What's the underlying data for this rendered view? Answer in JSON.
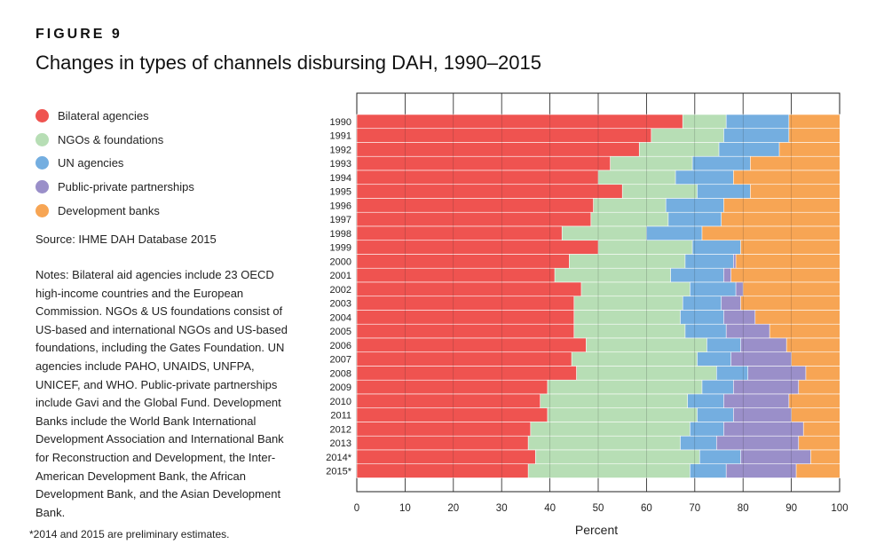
{
  "figure_label": "FIGURE 9",
  "title": "Changes in types of channels disbursing DAH, 1990–2015",
  "source": "Source: IHME DAH Database 2015",
  "notes": "Notes: Bilateral aid agencies include 23 OECD high-income countries and the European Commission. NGOs & US foundations consist of US-based and international NGOs and US-based foundations, including the Gates Foundation. UN agencies include PAHO, UNAIDS, UNFPA, UNICEF, and WHO. Public-private partnerships include Gavi and the Global Fund. Development Banks include the World Bank International Development Association and International Bank for Reconstruction and Development, the Inter-American Development Bank, the African Development Bank, and the Asian Development Bank.",
  "footnote": "*2014 and 2015 are preliminary estimates.",
  "legend": [
    {
      "label": "Bilateral agencies",
      "color": "#ef5350"
    },
    {
      "label": "NGOs & foundations",
      "color": "#b7deb5"
    },
    {
      "label": "UN agencies",
      "color": "#74aee0"
    },
    {
      "label": "Public-private partnerships",
      "color": "#9a8fc9"
    },
    {
      "label": "Development banks",
      "color": "#f7a554"
    }
  ],
  "chart_data": {
    "type": "bar",
    "orientation": "horizontal",
    "stacked": true,
    "xlabel": "Percent",
    "ylabel": "",
    "xlim": [
      0,
      100
    ],
    "x_ticks": [
      0,
      10,
      20,
      30,
      40,
      50,
      60,
      70,
      80,
      90,
      100
    ],
    "grid": true,
    "categories": [
      "1990",
      "1991",
      "1992",
      "1993",
      "1994",
      "1995",
      "1996",
      "1997",
      "1998",
      "1999",
      "2000",
      "2001",
      "2002",
      "2003",
      "2004",
      "2005",
      "2006",
      "2007",
      "2008",
      "2009",
      "2010",
      "2011",
      "2012",
      "2013",
      "2014*",
      "2015*"
    ],
    "series": [
      {
        "name": "Bilateral agencies",
        "color": "#ef5350",
        "values": [
          67.5,
          61,
          58.5,
          52.5,
          50,
          55,
          49,
          48.5,
          42.5,
          50,
          44,
          41,
          46.5,
          45,
          45,
          45,
          47.5,
          44.5,
          45.5,
          39.5,
          38,
          39.5,
          36,
          35.5,
          37,
          35.5
        ]
      },
      {
        "name": "NGOs & foundations",
        "color": "#b7deb5",
        "values": [
          9,
          15,
          16.5,
          17,
          16,
          15.5,
          15,
          16,
          17.5,
          19.5,
          24,
          24,
          22.5,
          22.5,
          22,
          23,
          25,
          26,
          29,
          32,
          30.5,
          31,
          33,
          31.5,
          34,
          33.5
        ]
      },
      {
        "name": "UN agencies",
        "color": "#74aee0",
        "values": [
          13,
          13.5,
          12.5,
          12,
          12,
          11,
          12,
          11,
          11.5,
          10,
          10,
          11,
          9.5,
          8,
          9,
          8.5,
          7,
          7,
          6.5,
          6.5,
          7.5,
          7.5,
          7,
          7.5,
          8.5,
          7.5
        ]
      },
      {
        "name": "Public-private partnerships",
        "color": "#9a8fc9",
        "values": [
          0,
          0,
          0,
          0,
          0,
          0,
          0,
          0,
          0,
          0,
          0.5,
          1.5,
          1.5,
          4,
          6.5,
          9,
          9.5,
          12.5,
          12,
          13.5,
          13.5,
          12,
          16.5,
          17,
          14.5,
          14.5
        ]
      },
      {
        "name": "Development banks",
        "color": "#f7a554",
        "values": [
          10.5,
          10.5,
          12.5,
          18.5,
          22,
          18.5,
          24,
          24.5,
          28.5,
          20.5,
          21.5,
          22.5,
          20,
          20.5,
          17.5,
          14.5,
          11,
          10,
          7,
          8.5,
          10.5,
          10,
          7.5,
          8.5,
          6,
          9
        ]
      }
    ]
  }
}
